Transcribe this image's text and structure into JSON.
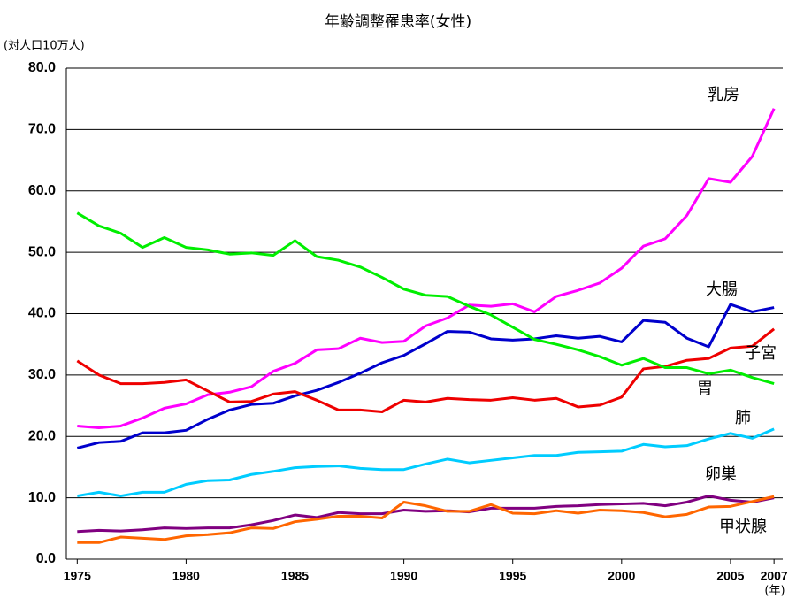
{
  "chart_data": {
    "type": "line",
    "title": "年齢調整罹患率(女性)",
    "y_label": "(対人口10万人)",
    "x_unit": "(年)",
    "x": [
      1975,
      1976,
      1977,
      1978,
      1979,
      1980,
      1981,
      1982,
      1983,
      1984,
      1985,
      1986,
      1987,
      1988,
      1989,
      1990,
      1991,
      1992,
      1993,
      1994,
      1995,
      1996,
      1997,
      1998,
      1999,
      2000,
      2001,
      2002,
      2003,
      2004,
      2005,
      2006,
      2007
    ],
    "xlim": [
      1974.5,
      2007.4
    ],
    "xticks": [
      1975,
      1980,
      1985,
      1990,
      1995,
      2000,
      2005,
      2007
    ],
    "ylim": [
      0,
      80
    ],
    "yticks": [
      {
        "value": 0,
        "label": "0.0"
      },
      {
        "value": 10,
        "label": "10.0"
      },
      {
        "value": 20,
        "label": "20.0"
      },
      {
        "value": 30,
        "label": "30.0"
      },
      {
        "value": 40,
        "label": "40.0"
      },
      {
        "value": 50,
        "label": "50.0"
      },
      {
        "value": 60,
        "label": "60.0"
      },
      {
        "value": 70,
        "label": "70.0"
      },
      {
        "value": 80,
        "label": "80.0"
      }
    ],
    "grid": true,
    "series": [
      {
        "name": "乳房",
        "color": "#ff00ff",
        "values": [
          21.7,
          21.4,
          21.7,
          23.0,
          24.6,
          25.3,
          26.8,
          27.2,
          28.1,
          30.6,
          31.9,
          34.1,
          34.3,
          36.0,
          35.3,
          35.5,
          38.0,
          39.3,
          41.4,
          41.2,
          41.6,
          40.3,
          42.8,
          43.8,
          45.0,
          47.4,
          51.0,
          52.2,
          56.0,
          62.0,
          61.4,
          65.6,
          73.4
        ]
      },
      {
        "name": "大腸",
        "color": "#0000cc",
        "values": [
          18.1,
          19.0,
          19.2,
          20.6,
          20.6,
          21.0,
          22.8,
          24.3,
          25.2,
          25.4,
          26.6,
          27.5,
          28.8,
          30.3,
          32.0,
          33.2,
          35.1,
          37.1,
          37.0,
          35.9,
          35.7,
          35.9,
          36.4,
          36.0,
          36.3,
          35.4,
          38.9,
          38.6,
          36.0,
          34.6,
          41.5,
          40.3,
          41.0
        ]
      },
      {
        "name": "子宮",
        "color": "#ee0000",
        "values": [
          32.3,
          30.0,
          28.6,
          28.6,
          28.8,
          29.2,
          27.4,
          25.6,
          25.7,
          26.9,
          27.3,
          25.9,
          24.3,
          24.3,
          24.0,
          25.9,
          25.6,
          26.2,
          26.0,
          25.9,
          26.3,
          25.9,
          26.2,
          24.8,
          25.1,
          26.4,
          31.0,
          31.4,
          32.4,
          32.7,
          34.4,
          34.7,
          37.5
        ]
      },
      {
        "name": "胃",
        "color": "#00ee00",
        "values": [
          56.4,
          54.3,
          53.1,
          50.8,
          52.4,
          50.8,
          50.4,
          49.7,
          49.9,
          49.5,
          51.9,
          49.3,
          48.7,
          47.6,
          45.9,
          44.0,
          43.0,
          42.8,
          41.2,
          39.8,
          37.8,
          35.8,
          35.0,
          34.1,
          33.0,
          31.6,
          32.7,
          31.2,
          31.2,
          30.2,
          30.8,
          29.6,
          28.6
        ]
      },
      {
        "name": "肺",
        "color": "#00ccff",
        "values": [
          10.3,
          10.9,
          10.3,
          10.9,
          10.9,
          12.2,
          12.8,
          12.9,
          13.8,
          14.3,
          14.9,
          15.1,
          15.2,
          14.8,
          14.6,
          14.6,
          15.5,
          16.3,
          15.7,
          16.1,
          16.5,
          16.9,
          16.9,
          17.4,
          17.5,
          17.6,
          18.7,
          18.3,
          18.5,
          19.6,
          20.5,
          19.7,
          21.2
        ]
      },
      {
        "name": "卵巣",
        "color": "#800080",
        "values": [
          4.5,
          4.7,
          4.6,
          4.8,
          5.1,
          5.0,
          5.1,
          5.1,
          5.6,
          6.3,
          7.2,
          6.8,
          7.6,
          7.4,
          7.4,
          8.0,
          7.8,
          7.9,
          7.7,
          8.3,
          8.3,
          8.3,
          8.6,
          8.7,
          8.9,
          9.0,
          9.1,
          8.7,
          9.3,
          10.3,
          9.6,
          9.3,
          10.0
        ]
      },
      {
        "name": "甲状腺",
        "color": "#ff6600",
        "values": [
          2.7,
          2.7,
          3.6,
          3.4,
          3.2,
          3.8,
          4.0,
          4.3,
          5.1,
          5.0,
          6.1,
          6.5,
          7.0,
          7.0,
          6.7,
          9.3,
          8.7,
          7.8,
          7.8,
          8.9,
          7.5,
          7.4,
          7.9,
          7.5,
          8.0,
          7.9,
          7.6,
          6.9,
          7.3,
          8.5,
          8.6,
          9.4,
          10.2
        ]
      }
    ]
  }
}
